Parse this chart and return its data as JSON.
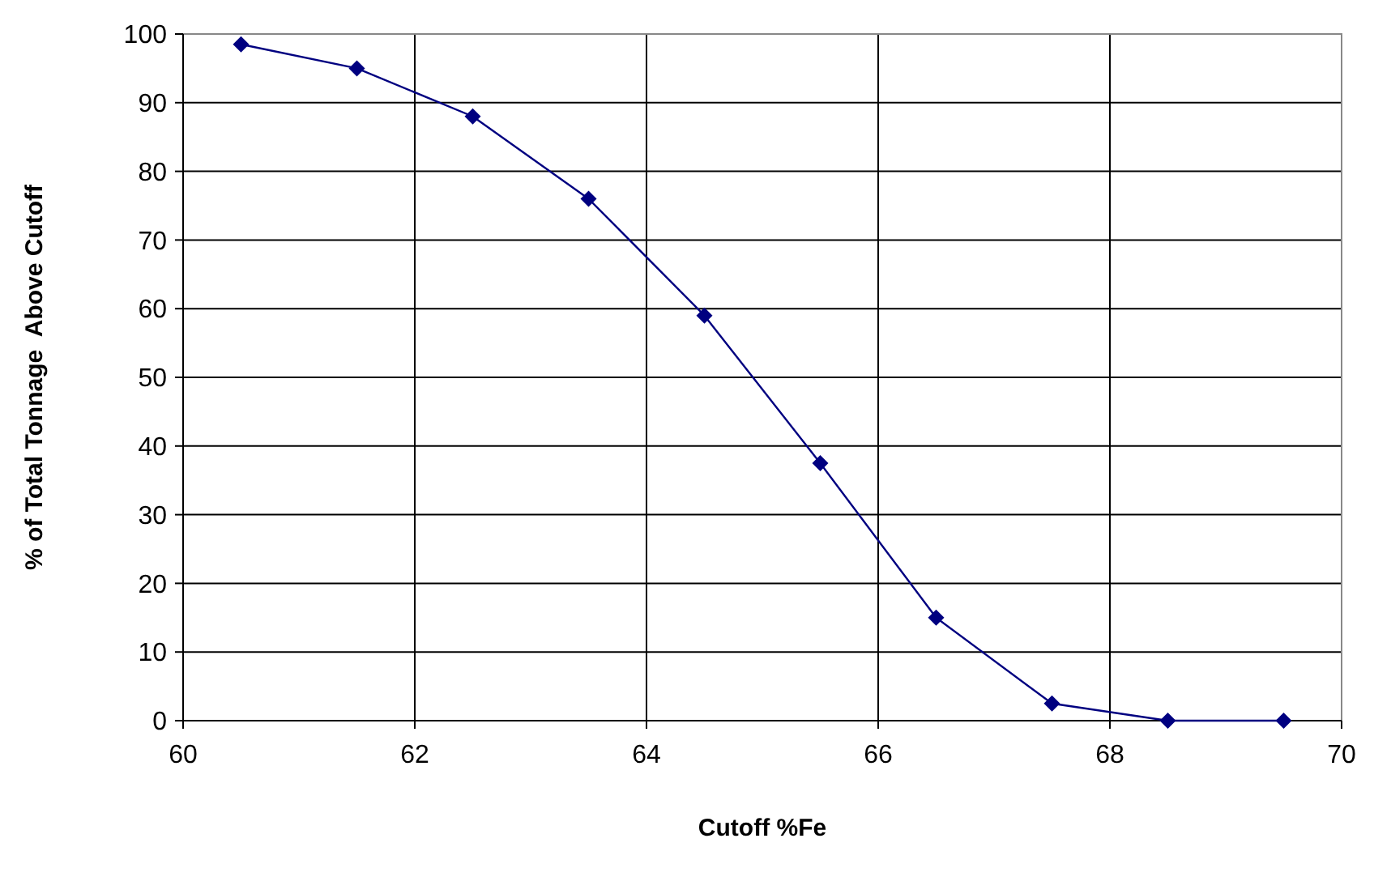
{
  "chart_data": {
    "type": "line",
    "xlabel": "Cutoff %Fe",
    "ylabel": "% of Total Tonnage  Above Cutoff",
    "x": [
      60.5,
      61.5,
      62.5,
      63.5,
      64.5,
      65.5,
      66.5,
      67.5,
      68.5,
      69.5
    ],
    "series": [
      {
        "color": "#000080",
        "values": [
          98.5,
          95,
          88,
          76,
          59,
          37.5,
          15,
          2.5,
          0,
          0
        ]
      }
    ],
    "xlim": [
      60,
      70
    ],
    "xticks": [
      60,
      62,
      64,
      66,
      68,
      70
    ],
    "ylim": [
      0,
      100
    ],
    "yticks": [
      0,
      10,
      20,
      30,
      40,
      50,
      60,
      70,
      80,
      90,
      100
    ],
    "grid": true,
    "marker": "diamond",
    "line_style": "solid"
  }
}
